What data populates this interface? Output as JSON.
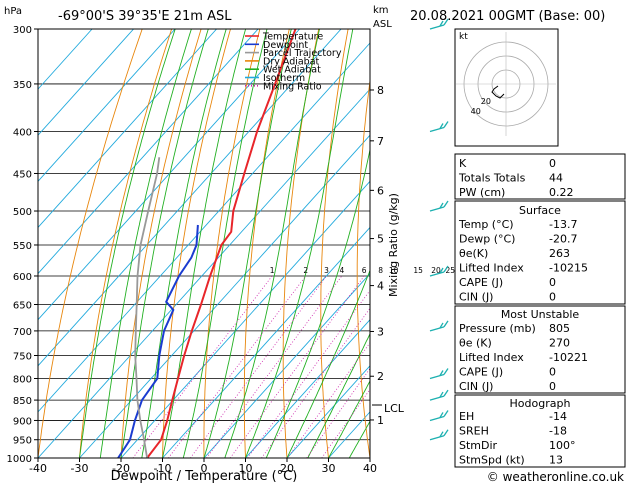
{
  "header": {
    "location": "-69°00'S  39°35'E  21m  ASL",
    "datetime": "20.08.2021  00GMT  (Base: 00)"
  },
  "axes": {
    "pressure_unit": "hPa",
    "height_unit_top": "km",
    "height_unit_bottom": "ASL",
    "xlabel": "Dewpoint / Temperature (°C)",
    "mixing_ratio_label": "Mixing Ratio (g/kg)",
    "lcl_label": "LCL",
    "pressure_ticks": [
      "300",
      "350",
      "400",
      "450",
      "500",
      "550",
      "600",
      "650",
      "700",
      "750",
      "800",
      "850",
      "900",
      "950",
      "1000"
    ],
    "temp_ticks": [
      "-40",
      "-30",
      "-20",
      "-10",
      "0",
      "10",
      "20",
      "30",
      "40"
    ],
    "km_ticks": [
      "8",
      "7",
      "6",
      "5",
      "4",
      "3",
      "2",
      "1"
    ],
    "mixing_ratio_ticks": [
      "1",
      "2",
      "3",
      "4",
      "6",
      "8",
      "10",
      "15",
      "20",
      "25"
    ]
  },
  "legend": {
    "items": [
      {
        "label": "Temperature",
        "color": "#e8252a",
        "style": "solid"
      },
      {
        "label": "Dewpoint",
        "color": "#1a3bd0",
        "style": "solid"
      },
      {
        "label": "Parcel Trajectory",
        "color": "#999999",
        "style": "solid"
      },
      {
        "label": "Dry Adiabat",
        "color": "#e8860c",
        "style": "solid"
      },
      {
        "label": "Wet Adiabat",
        "color": "#22b022",
        "style": "solid"
      },
      {
        "label": "Isotherm",
        "color": "#22aadd",
        "style": "solid"
      },
      {
        "label": "Mixing Ratio",
        "color": "#cc22aa",
        "style": "dotted"
      }
    ]
  },
  "hodograph": {
    "unit": "kt",
    "ring_labels": [
      "20",
      "40"
    ]
  },
  "indices": {
    "rows": [
      {
        "label": "K",
        "value": "0"
      },
      {
        "label": "Totals Totals",
        "value": "44"
      },
      {
        "label": "PW (cm)",
        "value": "0.22"
      }
    ]
  },
  "surface": {
    "title": "Surface",
    "rows": [
      {
        "label": "Temp (°C)",
        "value": "-13.7"
      },
      {
        "label": "Dewp (°C)",
        "value": "-20.7"
      },
      {
        "label": "θe(K)",
        "value": "263"
      },
      {
        "label": "Lifted Index",
        "value": "-10215"
      },
      {
        "label": "CAPE (J)",
        "value": "0"
      },
      {
        "label": "CIN (J)",
        "value": "0"
      }
    ]
  },
  "unstable": {
    "title": "Most Unstable",
    "rows": [
      {
        "label": "Pressure (mb)",
        "value": "805"
      },
      {
        "label": "θe (K)",
        "value": "270"
      },
      {
        "label": "Lifted Index",
        "value": "-10221"
      },
      {
        "label": "CAPE (J)",
        "value": "0"
      },
      {
        "label": "CIN (J)",
        "value": "0"
      }
    ]
  },
  "hodo_table": {
    "title": "Hodograph",
    "rows": [
      {
        "label": "EH",
        "value": "-14"
      },
      {
        "label": "SREH",
        "value": "-18"
      },
      {
        "label": "StmDir",
        "value": "100°"
      },
      {
        "label": "StmSpd (kt)",
        "value": "13"
      }
    ]
  },
  "footer": {
    "credit": "© weatheronline.co.uk"
  },
  "chart_data": {
    "type": "line",
    "title": "",
    "xlabel": "Dewpoint / Temperature (°C)",
    "ylabel": "hPa",
    "xlim": [
      -40,
      40
    ],
    "ylim": [
      1000,
      300
    ],
    "yscale": "log",
    "skew": true,
    "series": [
      {
        "name": "Temperature",
        "color": "#e8252a",
        "points": [
          [
            1000,
            -13.7
          ],
          [
            950,
            -14.3
          ],
          [
            900,
            -17.0
          ],
          [
            850,
            -20.2
          ],
          [
            800,
            -23.5
          ],
          [
            750,
            -27.0
          ],
          [
            700,
            -30.5
          ],
          [
            650,
            -34.0
          ],
          [
            600,
            -38.0
          ],
          [
            550,
            -42.0
          ],
          [
            530,
            -42.5
          ],
          [
            500,
            -46.5
          ],
          [
            450,
            -52.0
          ],
          [
            400,
            -58.0
          ],
          [
            350,
            -64.0
          ],
          [
            300,
            -71.0
          ]
        ]
      },
      {
        "name": "Dewpoint",
        "color": "#1a3bd0",
        "points": [
          [
            1000,
            -20.7
          ],
          [
            950,
            -21.8
          ],
          [
            900,
            -24.8
          ],
          [
            850,
            -27.5
          ],
          [
            800,
            -28.5
          ],
          [
            750,
            -33.0
          ],
          [
            700,
            -37.2
          ],
          [
            660,
            -39.5
          ],
          [
            645,
            -43.0
          ],
          [
            600,
            -45.5
          ],
          [
            570,
            -46.5
          ],
          [
            550,
            -48.0
          ],
          [
            520,
            -52.0
          ]
        ]
      },
      {
        "name": "Parcel Trajectory",
        "color": "#999999",
        "points": [
          [
            1000,
            -13.7
          ],
          [
            950,
            -18.4
          ],
          [
            900,
            -23.5
          ],
          [
            850,
            -28.6
          ],
          [
            800,
            -33.5
          ],
          [
            750,
            -38.8
          ],
          [
            700,
            -44.0
          ],
          [
            650,
            -49.5
          ],
          [
            600,
            -55.5
          ],
          [
            550,
            -61.5
          ],
          [
            500,
            -67.0
          ],
          [
            450,
            -73.0
          ],
          [
            430,
            -76.0
          ]
        ]
      }
    ],
    "wind_barbs_pressure": [
      300,
      400,
      500,
      600,
      700,
      800,
      850,
      900,
      950
    ],
    "hodograph_points": [
      [
        8,
        2
      ],
      [
        12,
        5
      ],
      [
        14,
        8
      ],
      [
        10,
        12
      ],
      [
        6,
        14
      ],
      [
        2,
        10
      ]
    ]
  }
}
